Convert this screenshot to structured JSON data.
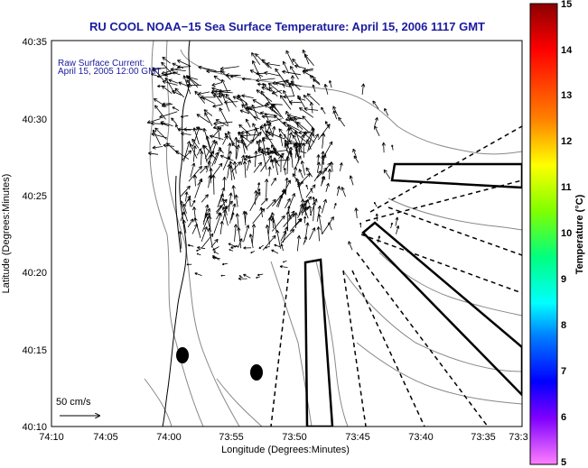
{
  "title": "RU COOL  NOAA−15  Sea Surface Temperature:  April 15, 2006 1117 GMT",
  "legend": {
    "line1": "Raw Surface Current:",
    "line2": "April 15, 2005 12:00 GMT"
  },
  "scale_label": "50 cm/s",
  "x_axis": {
    "label": "Longitude (Degrees:Minutes)",
    "ticks": [
      "74:10",
      "74:05",
      "74:00",
      "73:55",
      "73:50",
      "73:45",
      "73:40",
      "73:35",
      "73:3"
    ]
  },
  "y_axis": {
    "label": "Latitude (Degrees:Minutes)",
    "ticks": [
      "40:35",
      "40:30",
      "40:25",
      "40:20",
      "40:15",
      "40:10"
    ]
  },
  "colorbar": {
    "label": "Temperature (°C)",
    "ticks": [
      "15",
      "14",
      "13",
      "12",
      "11",
      "10",
      "9",
      "8",
      "7",
      "6",
      "5"
    ],
    "colors": [
      "#990000",
      "#ff0000",
      "#ff8000",
      "#ffff00",
      "#80ff00",
      "#00ff80",
      "#00ffff",
      "#0080ff",
      "#0000ff",
      "#8000ff",
      "#ff80ff"
    ]
  }
}
